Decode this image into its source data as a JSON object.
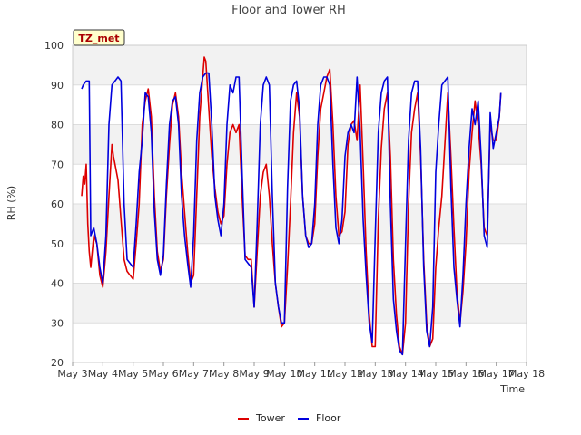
{
  "chart_data": {
    "type": "line",
    "title": "Floor and Tower RH",
    "xlabel": "Time",
    "ylabel": "RH (%)",
    "ylim": [
      20,
      100
    ],
    "xlim": [
      3,
      18
    ],
    "yticks": [
      20,
      30,
      40,
      50,
      60,
      70,
      80,
      90,
      100
    ],
    "xticks": [
      {
        "value": 3,
        "label": "May 3"
      },
      {
        "value": 4,
        "label": "May 4"
      },
      {
        "value": 5,
        "label": "May 5"
      },
      {
        "value": 6,
        "label": "May 6"
      },
      {
        "value": 7,
        "label": "May 7"
      },
      {
        "value": 8,
        "label": "May 8"
      },
      {
        "value": 9,
        "label": "May 9"
      },
      {
        "value": 10,
        "label": "May 10"
      },
      {
        "value": 11,
        "label": "May 11"
      },
      {
        "value": 12,
        "label": "May 12"
      },
      {
        "value": 13,
        "label": "May 13"
      },
      {
        "value": 14,
        "label": "May 14"
      },
      {
        "value": 15,
        "label": "May 15"
      },
      {
        "value": 16,
        "label": "May 16"
      },
      {
        "value": 17,
        "label": "May 17"
      },
      {
        "value": 18,
        "label": "May 18"
      }
    ],
    "grid": true,
    "legend_position": "bottom-center",
    "badge": "TZ_met",
    "series": [
      {
        "name": "Tower",
        "color": "#dd0000",
        "points": [
          [
            3.3,
            62
          ],
          [
            3.35,
            67
          ],
          [
            3.4,
            65
          ],
          [
            3.45,
            70
          ],
          [
            3.5,
            55
          ],
          [
            3.55,
            48
          ],
          [
            3.6,
            44
          ],
          [
            3.7,
            52
          ],
          [
            3.8,
            50
          ],
          [
            3.9,
            42
          ],
          [
            4.0,
            39
          ],
          [
            4.1,
            48
          ],
          [
            4.2,
            62
          ],
          [
            4.3,
            75
          ],
          [
            4.35,
            72
          ],
          [
            4.4,
            70
          ],
          [
            4.5,
            66
          ],
          [
            4.6,
            56
          ],
          [
            4.7,
            46
          ],
          [
            4.8,
            43
          ],
          [
            4.9,
            42
          ],
          [
            5.0,
            41
          ],
          [
            5.1,
            50
          ],
          [
            5.2,
            60
          ],
          [
            5.3,
            80
          ],
          [
            5.4,
            86
          ],
          [
            5.5,
            89
          ],
          [
            5.6,
            82
          ],
          [
            5.7,
            62
          ],
          [
            5.8,
            48
          ],
          [
            5.9,
            43
          ],
          [
            6.0,
            46
          ],
          [
            6.1,
            62
          ],
          [
            6.2,
            75
          ],
          [
            6.3,
            85
          ],
          [
            6.4,
            88
          ],
          [
            6.5,
            82
          ],
          [
            6.6,
            68
          ],
          [
            6.7,
            58
          ],
          [
            6.8,
            48
          ],
          [
            6.9,
            40
          ],
          [
            7.0,
            42
          ],
          [
            7.1,
            62
          ],
          [
            7.2,
            82
          ],
          [
            7.3,
            92
          ],
          [
            7.35,
            97
          ],
          [
            7.4,
            96
          ],
          [
            7.5,
            84
          ],
          [
            7.6,
            72
          ],
          [
            7.7,
            64
          ],
          [
            7.8,
            58
          ],
          [
            7.9,
            55
          ],
          [
            8.0,
            57
          ],
          [
            8.1,
            70
          ],
          [
            8.2,
            78
          ],
          [
            8.3,
            80
          ],
          [
            8.4,
            78
          ],
          [
            8.5,
            80
          ],
          [
            8.6,
            62
          ],
          [
            8.7,
            47
          ],
          [
            8.8,
            46
          ],
          [
            8.9,
            46
          ],
          [
            9.0,
            34
          ],
          [
            9.1,
            48
          ],
          [
            9.2,
            62
          ],
          [
            9.3,
            68
          ],
          [
            9.4,
            70
          ],
          [
            9.5,
            62
          ],
          [
            9.6,
            50
          ],
          [
            9.7,
            40
          ],
          [
            9.8,
            34
          ],
          [
            9.9,
            29
          ],
          [
            10.0,
            30
          ],
          [
            10.1,
            44
          ],
          [
            10.2,
            60
          ],
          [
            10.3,
            78
          ],
          [
            10.4,
            88
          ],
          [
            10.5,
            82
          ],
          [
            10.6,
            62
          ],
          [
            10.7,
            52
          ],
          [
            10.8,
            50
          ],
          [
            10.9,
            50
          ],
          [
            11.0,
            55
          ],
          [
            11.1,
            72
          ],
          [
            11.2,
            84
          ],
          [
            11.3,
            88
          ],
          [
            11.4,
            92
          ],
          [
            11.5,
            94
          ],
          [
            11.6,
            80
          ],
          [
            11.7,
            62
          ],
          [
            11.8,
            52
          ],
          [
            11.9,
            53
          ],
          [
            12.0,
            58
          ],
          [
            12.1,
            75
          ],
          [
            12.2,
            80
          ],
          [
            12.3,
            81
          ],
          [
            12.4,
            76
          ],
          [
            12.5,
            90
          ],
          [
            12.6,
            70
          ],
          [
            12.7,
            48
          ],
          [
            12.8,
            32
          ],
          [
            12.9,
            24
          ],
          [
            13.0,
            24
          ],
          [
            13.1,
            56
          ],
          [
            13.2,
            74
          ],
          [
            13.3,
            84
          ],
          [
            13.4,
            88
          ],
          [
            13.5,
            72
          ],
          [
            13.6,
            46
          ],
          [
            13.7,
            32
          ],
          [
            13.8,
            24
          ],
          [
            13.9,
            22
          ],
          [
            14.0,
            30
          ],
          [
            14.1,
            60
          ],
          [
            14.2,
            78
          ],
          [
            14.3,
            84
          ],
          [
            14.4,
            88
          ],
          [
            14.5,
            72
          ],
          [
            14.6,
            46
          ],
          [
            14.7,
            30
          ],
          [
            14.8,
            24
          ],
          [
            14.9,
            26
          ],
          [
            15.0,
            44
          ],
          [
            15.1,
            54
          ],
          [
            15.2,
            62
          ],
          [
            15.3,
            75
          ],
          [
            15.4,
            88
          ],
          [
            15.5,
            72
          ],
          [
            15.6,
            54
          ],
          [
            15.7,
            38
          ],
          [
            15.8,
            30
          ],
          [
            15.9,
            38
          ],
          [
            16.0,
            50
          ],
          [
            16.1,
            68
          ],
          [
            16.2,
            78
          ],
          [
            16.3,
            86
          ],
          [
            16.4,
            80
          ],
          [
            16.5,
            70
          ],
          [
            16.6,
            54
          ],
          [
            16.7,
            52
          ],
          [
            16.8,
            80
          ],
          [
            16.9,
            76
          ],
          [
            17.0,
            76
          ],
          [
            17.1,
            82
          ],
          [
            17.15,
            88
          ]
        ]
      },
      {
        "name": "Floor",
        "color": "#0000dd",
        "points": [
          [
            3.3,
            89
          ],
          [
            3.35,
            90
          ],
          [
            3.45,
            91
          ],
          [
            3.55,
            91
          ],
          [
            3.6,
            52
          ],
          [
            3.7,
            54
          ],
          [
            3.8,
            50
          ],
          [
            3.9,
            44
          ],
          [
            4.0,
            40
          ],
          [
            4.1,
            52
          ],
          [
            4.2,
            80
          ],
          [
            4.3,
            90
          ],
          [
            4.4,
            91
          ],
          [
            4.5,
            92
          ],
          [
            4.6,
            91
          ],
          [
            4.7,
            60
          ],
          [
            4.8,
            46
          ],
          [
            4.9,
            45
          ],
          [
            5.0,
            44
          ],
          [
            5.1,
            55
          ],
          [
            5.2,
            68
          ],
          [
            5.3,
            76
          ],
          [
            5.4,
            88
          ],
          [
            5.5,
            87
          ],
          [
            5.6,
            78
          ],
          [
            5.7,
            58
          ],
          [
            5.8,
            46
          ],
          [
            5.9,
            42
          ],
          [
            6.0,
            47
          ],
          [
            6.1,
            65
          ],
          [
            6.2,
            80
          ],
          [
            6.3,
            86
          ],
          [
            6.4,
            87
          ],
          [
            6.5,
            80
          ],
          [
            6.6,
            62
          ],
          [
            6.7,
            52
          ],
          [
            6.8,
            45
          ],
          [
            6.9,
            39
          ],
          [
            7.0,
            52
          ],
          [
            7.1,
            76
          ],
          [
            7.2,
            88
          ],
          [
            7.3,
            92
          ],
          [
            7.4,
            93
          ],
          [
            7.5,
            93
          ],
          [
            7.6,
            80
          ],
          [
            7.7,
            62
          ],
          [
            7.8,
            56
          ],
          [
            7.9,
            52
          ],
          [
            8.0,
            60
          ],
          [
            8.1,
            80
          ],
          [
            8.2,
            90
          ],
          [
            8.3,
            88
          ],
          [
            8.4,
            92
          ],
          [
            8.5,
            92
          ],
          [
            8.6,
            68
          ],
          [
            8.7,
            46
          ],
          [
            8.8,
            45
          ],
          [
            8.9,
            44
          ],
          [
            9.0,
            34
          ],
          [
            9.1,
            55
          ],
          [
            9.2,
            80
          ],
          [
            9.3,
            90
          ],
          [
            9.4,
            92
          ],
          [
            9.5,
            90
          ],
          [
            9.6,
            62
          ],
          [
            9.7,
            40
          ],
          [
            9.8,
            34
          ],
          [
            9.9,
            30
          ],
          [
            10.0,
            30
          ],
          [
            10.1,
            64
          ],
          [
            10.2,
            86
          ],
          [
            10.3,
            90
          ],
          [
            10.4,
            91
          ],
          [
            10.5,
            84
          ],
          [
            10.6,
            62
          ],
          [
            10.7,
            52
          ],
          [
            10.8,
            49
          ],
          [
            10.9,
            50
          ],
          [
            11.0,
            60
          ],
          [
            11.1,
            80
          ],
          [
            11.2,
            90
          ],
          [
            11.3,
            92
          ],
          [
            11.4,
            92
          ],
          [
            11.5,
            90
          ],
          [
            11.6,
            70
          ],
          [
            11.7,
            54
          ],
          [
            11.8,
            50
          ],
          [
            11.9,
            56
          ],
          [
            12.0,
            72
          ],
          [
            12.1,
            78
          ],
          [
            12.2,
            80
          ],
          [
            12.3,
            78
          ],
          [
            12.4,
            92
          ],
          [
            12.5,
            78
          ],
          [
            12.6,
            56
          ],
          [
            12.7,
            42
          ],
          [
            12.8,
            30
          ],
          [
            12.9,
            25
          ],
          [
            13.0,
            52
          ],
          [
            13.1,
            78
          ],
          [
            13.2,
            88
          ],
          [
            13.3,
            91
          ],
          [
            13.4,
            92
          ],
          [
            13.5,
            60
          ],
          [
            13.6,
            36
          ],
          [
            13.7,
            28
          ],
          [
            13.8,
            23
          ],
          [
            13.9,
            22
          ],
          [
            14.0,
            50
          ],
          [
            14.1,
            76
          ],
          [
            14.2,
            88
          ],
          [
            14.3,
            91
          ],
          [
            14.4,
            91
          ],
          [
            14.5,
            74
          ],
          [
            14.6,
            44
          ],
          [
            14.7,
            28
          ],
          [
            14.8,
            24
          ],
          [
            14.9,
            34
          ],
          [
            15.0,
            68
          ],
          [
            15.1,
            80
          ],
          [
            15.2,
            90
          ],
          [
            15.3,
            91
          ],
          [
            15.4,
            92
          ],
          [
            15.5,
            64
          ],
          [
            15.6,
            44
          ],
          [
            15.7,
            36
          ],
          [
            15.8,
            29
          ],
          [
            15.9,
            42
          ],
          [
            16.0,
            60
          ],
          [
            16.1,
            74
          ],
          [
            16.2,
            84
          ],
          [
            16.3,
            80
          ],
          [
            16.4,
            86
          ],
          [
            16.5,
            72
          ],
          [
            16.6,
            52
          ],
          [
            16.7,
            49
          ],
          [
            16.8,
            83
          ],
          [
            16.9,
            74
          ],
          [
            17.0,
            78
          ],
          [
            17.1,
            82
          ],
          [
            17.15,
            88
          ]
        ]
      }
    ]
  }
}
